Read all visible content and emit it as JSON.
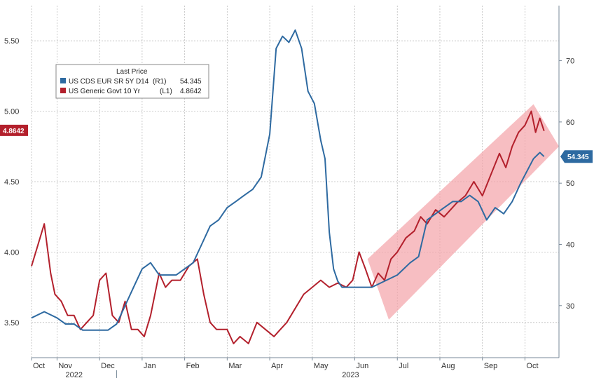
{
  "chart_data": {
    "type": "line",
    "legend": {
      "title": "Last Price",
      "placement": "top-left",
      "entries": [
        {
          "label": "US CDS EUR SR 5Y D14",
          "axis": "(R1)",
          "value": "54.345",
          "color": "#2e6aa1"
        },
        {
          "label": "US Generic Govt 10 Yr",
          "axis": "(L1)",
          "value": "4.8642",
          "color": "#b3202c"
        }
      ]
    },
    "left_axis": {
      "ylim": [
        3.25,
        5.75
      ],
      "ticks": [
        "3.50",
        "4.00",
        "4.50",
        "5.00",
        "5.50"
      ]
    },
    "right_axis": {
      "ylim": [
        21.5,
        79
      ],
      "ticks": [
        "30",
        "40",
        "50",
        "60",
        "70"
      ]
    },
    "x_axis": {
      "xlim": [
        0,
        12.4
      ],
      "month_labels": [
        {
          "label": "Oct",
          "x": 0.0
        },
        {
          "label": "Nov",
          "x": 0.6
        },
        {
          "label": "Dec",
          "x": 1.6
        },
        {
          "label": "Jan",
          "x": 2.6
        },
        {
          "label": "Feb",
          "x": 3.6
        },
        {
          "label": "Mar",
          "x": 4.6
        },
        {
          "label": "Apr",
          "x": 5.6
        },
        {
          "label": "May",
          "x": 6.6
        },
        {
          "label": "Jun",
          "x": 7.6
        },
        {
          "label": "Jul",
          "x": 8.6
        },
        {
          "label": "Aug",
          "x": 9.6
        },
        {
          "label": "Sep",
          "x": 10.6
        },
        {
          "label": "Oct",
          "x": 11.6
        }
      ],
      "year_labels": [
        {
          "label": "2022",
          "x": 1.0
        },
        {
          "label": "2023",
          "x": 7.5
        }
      ],
      "year_divider_x": 2.0
    },
    "last_value_tags": {
      "left": {
        "text": "4.8642",
        "value": 4.8642,
        "color": "#b3202c"
      },
      "right": {
        "text": "54.345",
        "value": 54.345,
        "color": "#2e6aa1"
      }
    },
    "highlight_channel": {
      "color": "#f3a3a8",
      "axis": "left",
      "points": [
        [
          7.9,
          3.95
        ],
        [
          11.8,
          5.05
        ],
        [
          12.4,
          4.75
        ],
        [
          8.4,
          3.52
        ]
      ]
    },
    "grid": true,
    "series": [
      {
        "name": "US Generic Govt 10 Yr",
        "axis": "left",
        "color": "#b3202c",
        "x": [
          0,
          0.15,
          0.3,
          0.45,
          0.55,
          0.7,
          0.85,
          1.0,
          1.15,
          1.3,
          1.45,
          1.6,
          1.75,
          1.9,
          2.05,
          2.2,
          2.35,
          2.5,
          2.65,
          2.8,
          3.0,
          3.15,
          3.3,
          3.5,
          3.7,
          3.9,
          4.05,
          4.2,
          4.35,
          4.5,
          4.6,
          4.75,
          4.9,
          5.1,
          5.3,
          5.5,
          5.7,
          5.85,
          6.0,
          6.2,
          6.4,
          6.6,
          6.8,
          7.0,
          7.2,
          7.4,
          7.55,
          7.7,
          7.85,
          8.0,
          8.15,
          8.3,
          8.45,
          8.6,
          8.8,
          9.0,
          9.15,
          9.3,
          9.5,
          9.7,
          9.85,
          10.0,
          10.2,
          10.4,
          10.6,
          10.8,
          11.0,
          11.15,
          11.3,
          11.45,
          11.6,
          11.75,
          11.85,
          11.95,
          12.05
        ],
        "y": [
          3.9,
          4.05,
          4.2,
          3.85,
          3.7,
          3.65,
          3.55,
          3.55,
          3.45,
          3.5,
          3.55,
          3.8,
          3.85,
          3.55,
          3.5,
          3.65,
          3.45,
          3.45,
          3.4,
          3.55,
          3.85,
          3.75,
          3.8,
          3.8,
          3.9,
          3.95,
          3.7,
          3.5,
          3.45,
          3.45,
          3.45,
          3.35,
          3.4,
          3.35,
          3.5,
          3.45,
          3.4,
          3.45,
          3.5,
          3.6,
          3.7,
          3.75,
          3.8,
          3.75,
          3.78,
          3.75,
          3.8,
          4.0,
          3.88,
          3.75,
          3.85,
          3.8,
          3.95,
          4.0,
          4.1,
          4.15,
          4.25,
          4.2,
          4.3,
          4.25,
          4.3,
          4.35,
          4.4,
          4.5,
          4.4,
          4.55,
          4.7,
          4.6,
          4.75,
          4.85,
          4.9,
          5.0,
          4.85,
          4.95,
          4.86
        ]
      },
      {
        "name": "US CDS EUR SR 5Y D14",
        "axis": "right",
        "color": "#2e6aa1",
        "x": [
          0,
          0.3,
          0.6,
          0.8,
          1.0,
          1.2,
          1.5,
          1.8,
          2.0,
          2.2,
          2.4,
          2.6,
          2.8,
          3.0,
          3.2,
          3.4,
          3.6,
          3.8,
          4.0,
          4.2,
          4.4,
          4.6,
          4.8,
          5.0,
          5.2,
          5.4,
          5.6,
          5.75,
          5.9,
          6.05,
          6.2,
          6.35,
          6.5,
          6.65,
          6.8,
          6.9,
          7.0,
          7.1,
          7.2,
          7.3,
          7.4,
          7.5,
          7.6,
          7.8,
          8.0,
          8.3,
          8.6,
          8.9,
          9.1,
          9.3,
          9.5,
          9.7,
          9.9,
          10.1,
          10.3,
          10.5,
          10.7,
          10.9,
          11.1,
          11.3,
          11.5,
          11.65,
          11.8,
          11.95,
          12.05
        ],
        "y": [
          28,
          29,
          28,
          27,
          27,
          26,
          26,
          26,
          27,
          30,
          33,
          36,
          37,
          35,
          35,
          35,
          36,
          37,
          40,
          43,
          44,
          46,
          47,
          48,
          49,
          51,
          58,
          72,
          74,
          73,
          75,
          72,
          65,
          63,
          57,
          54,
          42,
          36,
          34,
          33,
          33,
          33,
          33,
          33,
          33,
          34,
          35,
          37,
          38,
          44,
          45,
          46,
          47,
          47,
          48,
          47,
          44,
          46,
          45,
          47,
          50,
          52,
          54,
          55,
          54.345
        ]
      }
    ]
  }
}
